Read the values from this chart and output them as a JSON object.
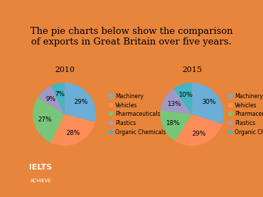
{
  "title": "The pie charts below show the comparison\nof exports in Great Britain over five years.",
  "title_fontsize": 9.5,
  "chart2010_title": "2010",
  "chart2015_title": "2015",
  "categories": [
    "Machinery",
    "Vehicles",
    "Pharmaceuticals",
    "Plastics",
    "Organic Chemicals"
  ],
  "values_2010": [
    29,
    28,
    27,
    9,
    7
  ],
  "values_2015": [
    30,
    29,
    18,
    13,
    10
  ],
  "colors": [
    "#6baed6",
    "#fc8d59",
    "#78c679",
    "#9e9ac8",
    "#41b6c4"
  ],
  "pct_fontsize": 6.5,
  "legend_fontsize": 5.5,
  "bg_color": "#f0f0f0",
  "outer_bg": "#e8853c",
  "panel_bg": "#ffffff",
  "logo_bg": "#d45f1e",
  "logo_text1": "IELTS",
  "logo_text2": "ACHIEVE"
}
